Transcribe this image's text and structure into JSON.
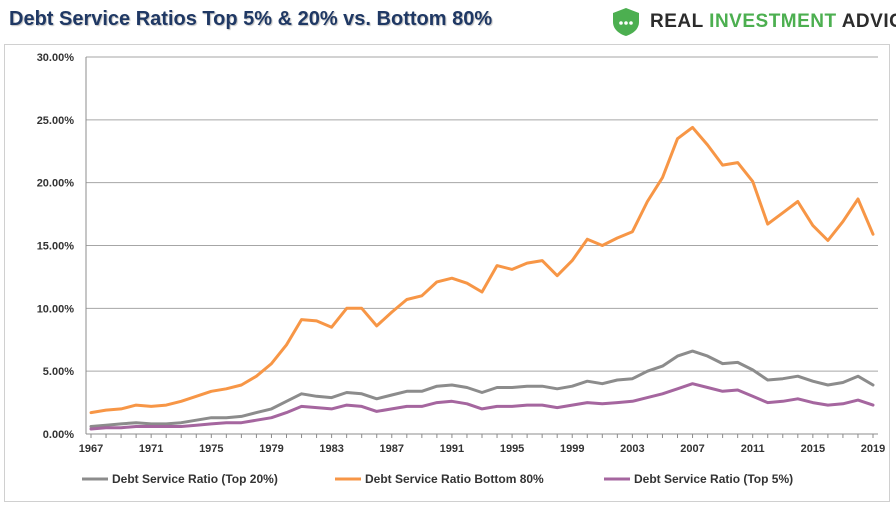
{
  "header": {
    "title": "Debt Service Ratios Top 5% & 20% vs. Bottom 80%"
  },
  "logo": {
    "part1": "REAL ",
    "part2": "INVESTMENT",
    "part3": " ADVICE",
    "icon": "shield-chart-icon",
    "colors": {
      "dark": "#2c2c2c",
      "green": "#4caf50"
    }
  },
  "chart_data": {
    "type": "line",
    "title": "Debt Service Ratios Top 5% & 20% vs. Bottom 80%",
    "xlabel": "",
    "ylabel": "",
    "ylim": [
      0,
      30
    ],
    "xlim": [
      1967,
      2019
    ],
    "grid": true,
    "legend_position": "bottom",
    "y_ticks": [
      "0.00%",
      "5.00%",
      "10.00%",
      "15.00%",
      "20.00%",
      "25.00%",
      "30.00%"
    ],
    "x_ticks": [
      "1967",
      "1971",
      "1975",
      "1979",
      "1983",
      "1987",
      "1991",
      "1995",
      "1999",
      "2003",
      "2007",
      "2011",
      "2015",
      "2019"
    ],
    "x": [
      1967,
      1968,
      1969,
      1970,
      1971,
      1972,
      1973,
      1974,
      1975,
      1976,
      1977,
      1978,
      1979,
      1980,
      1981,
      1982,
      1983,
      1984,
      1985,
      1986,
      1987,
      1988,
      1989,
      1990,
      1991,
      1992,
      1993,
      1994,
      1995,
      1996,
      1997,
      1998,
      1999,
      2000,
      2001,
      2002,
      2003,
      2004,
      2005,
      2006,
      2007,
      2008,
      2009,
      2010,
      2011,
      2012,
      2013,
      2014,
      2015,
      2016,
      2017,
      2018,
      2019
    ],
    "series": [
      {
        "name": "Debt Service Ratio (Top 20%)",
        "color": "#8c8c8c",
        "values": [
          0.6,
          0.7,
          0.8,
          0.9,
          0.8,
          0.8,
          0.9,
          1.1,
          1.3,
          1.3,
          1.4,
          1.7,
          2.0,
          2.6,
          3.2,
          3.0,
          2.9,
          3.3,
          3.2,
          2.8,
          3.1,
          3.4,
          3.4,
          3.8,
          3.9,
          3.7,
          3.3,
          3.7,
          3.7,
          3.8,
          3.8,
          3.6,
          3.8,
          4.2,
          4.0,
          4.3,
          4.4,
          5.0,
          5.4,
          6.2,
          6.6,
          6.2,
          5.6,
          5.7,
          5.1,
          4.3,
          4.4,
          4.6,
          4.2,
          3.9,
          4.1,
          4.6,
          3.9
        ]
      },
      {
        "name": "Debt Service Ratio Bottom 80%",
        "color": "#f79646",
        "values": [
          1.7,
          1.9,
          2.0,
          2.3,
          2.2,
          2.3,
          2.6,
          3.0,
          3.4,
          3.6,
          3.9,
          4.6,
          5.6,
          7.1,
          9.1,
          9.0,
          8.5,
          10.0,
          10.0,
          8.6,
          9.7,
          10.7,
          11.0,
          12.1,
          12.4,
          12.0,
          11.3,
          13.4,
          13.1,
          13.6,
          13.8,
          12.6,
          13.8,
          15.5,
          15.0,
          15.6,
          16.1,
          18.5,
          20.4,
          23.5,
          24.4,
          23.0,
          21.4,
          21.6,
          20.1,
          16.7,
          17.6,
          18.5,
          16.6,
          15.4,
          16.9,
          18.7,
          15.9
        ]
      },
      {
        "name": "Debt Service Ratio (Top 5%)",
        "color": "#a5669f",
        "values": [
          0.4,
          0.5,
          0.5,
          0.6,
          0.6,
          0.6,
          0.6,
          0.7,
          0.8,
          0.9,
          0.9,
          1.1,
          1.3,
          1.7,
          2.2,
          2.1,
          2.0,
          2.3,
          2.2,
          1.8,
          2.0,
          2.2,
          2.2,
          2.5,
          2.6,
          2.4,
          2.0,
          2.2,
          2.2,
          2.3,
          2.3,
          2.1,
          2.3,
          2.5,
          2.4,
          2.5,
          2.6,
          2.9,
          3.2,
          3.6,
          4.0,
          3.7,
          3.4,
          3.5,
          3.0,
          2.5,
          2.6,
          2.8,
          2.5,
          2.3,
          2.4,
          2.7,
          2.3
        ]
      }
    ]
  },
  "legend": {
    "items": [
      {
        "label": "Debt Service Ratio (Top 20%)",
        "color": "#8c8c8c"
      },
      {
        "label": "Debt Service Ratio Bottom 80%",
        "color": "#f79646"
      },
      {
        "label": "Debt Service Ratio (Top 5%)",
        "color": "#a5669f"
      }
    ]
  }
}
